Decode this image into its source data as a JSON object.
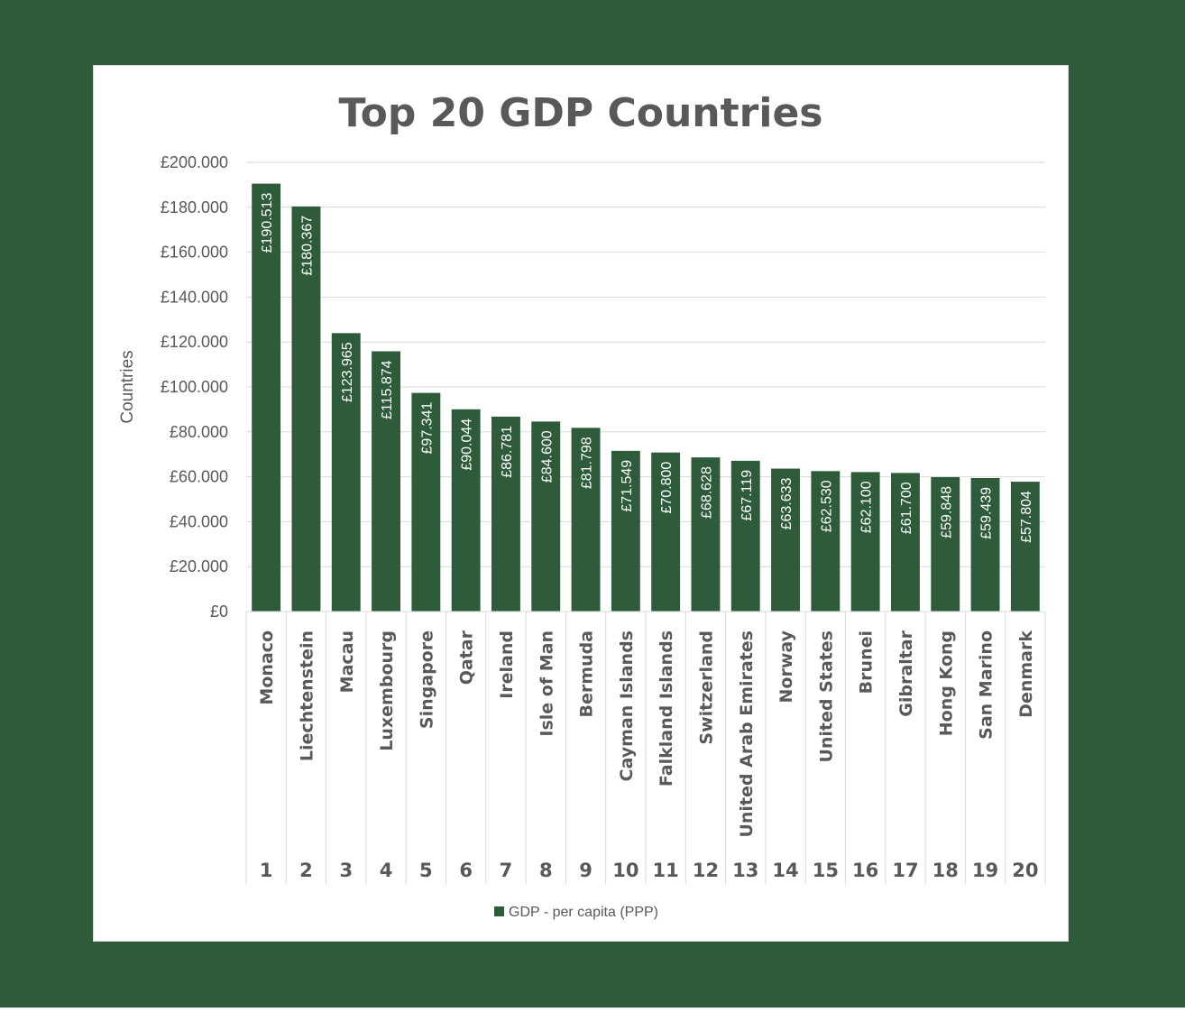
{
  "colors": {
    "background": "#2e5b3a",
    "card": "#ffffff",
    "bar": "#2e5b3a",
    "text": "#595959",
    "grid": "#d9d9d9"
  },
  "chart_data": {
    "type": "bar",
    "title": "Top 20 GDP Countries",
    "xlabel": "",
    "ylabel": "Countries",
    "ylim": [
      0,
      200000
    ],
    "yticks": [
      0,
      20000,
      40000,
      60000,
      80000,
      100000,
      120000,
      140000,
      160000,
      180000,
      200000
    ],
    "ytick_labels": [
      "£0",
      "£20.000",
      "£40.000",
      "£60.000",
      "£80.000",
      "£100.000",
      "£120.000",
      "£140.000",
      "£160.000",
      "£180.000",
      "£200.000"
    ],
    "grid": true,
    "legend_position": "bottom",
    "categories": [
      "Monaco",
      "Liechtenstein",
      "Macau",
      "Luxembourg",
      "Singapore",
      "Qatar",
      "Ireland",
      "Isle of Man",
      "Bermuda",
      "Cayman Islands",
      "Falkland Islands",
      "Switzerland",
      "United Arab Emirates",
      "Norway",
      "United States",
      "Brunei",
      "Gibraltar",
      "Hong Kong",
      "San Marino",
      "Denmark"
    ],
    "ranks": [
      "1",
      "2",
      "3",
      "4",
      "5",
      "6",
      "7",
      "8",
      "9",
      "10",
      "11",
      "12",
      "13",
      "14",
      "15",
      "16",
      "17",
      "18",
      "19",
      "20"
    ],
    "series": [
      {
        "name": "GDP - per capita (PPP)",
        "values": [
          190513,
          180367,
          123965,
          115874,
          97341,
          90044,
          86781,
          84600,
          81798,
          71549,
          70800,
          68628,
          67119,
          63633,
          62530,
          62100,
          61700,
          59848,
          59439,
          57804
        ],
        "labels": [
          "£190.513",
          "£180.367",
          "£123.965",
          "£115.874",
          "£97.341",
          "£90.044",
          "£86.781",
          "£84.600",
          "£81.798",
          "£71.549",
          "£70.800",
          "£68.628",
          "£67.119",
          "£63.633",
          "£62.530",
          "£62.100",
          "£61.700",
          "£59.848",
          "£59.439",
          "£57.804"
        ]
      }
    ]
  }
}
